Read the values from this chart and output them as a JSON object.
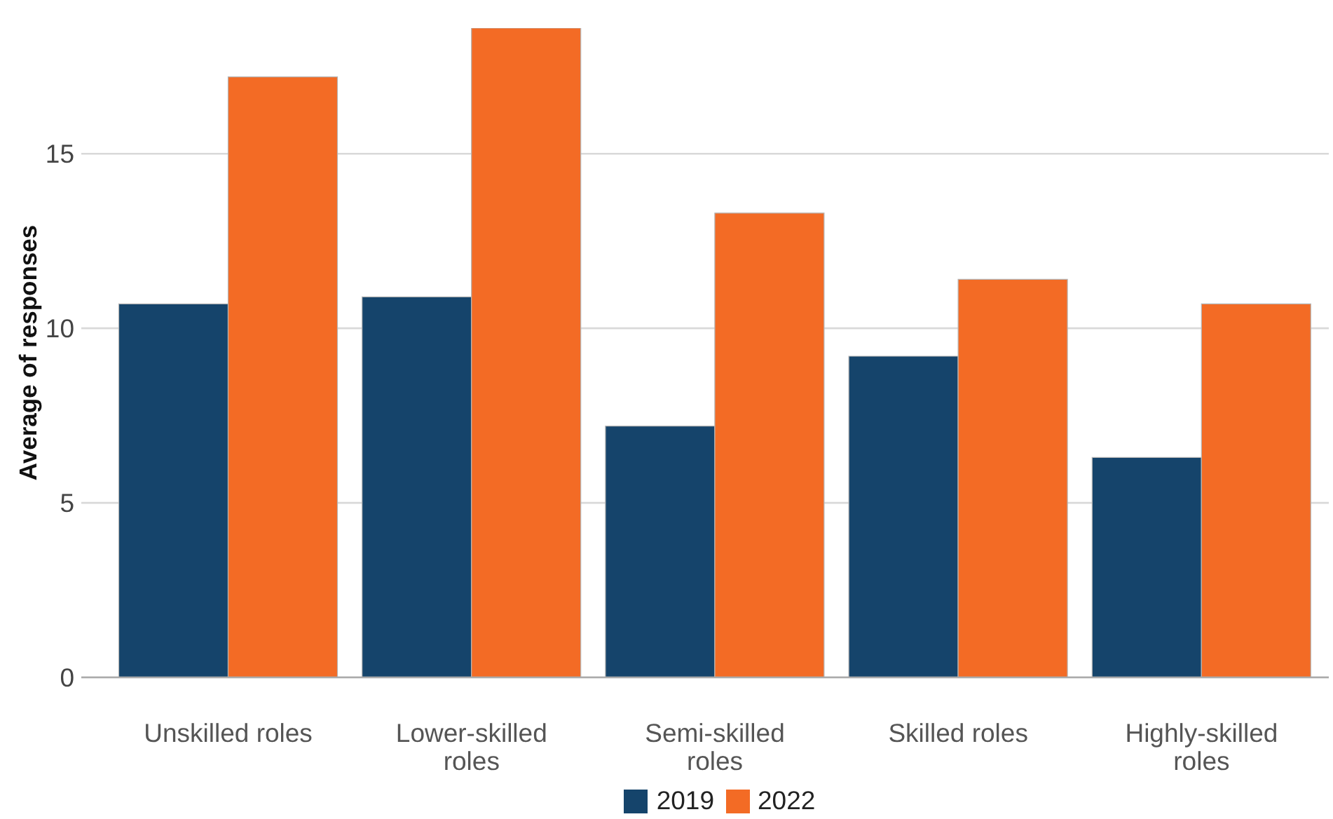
{
  "chart_data": {
    "type": "bar",
    "ylabel": "Average of responses",
    "categories": [
      "Unskilled roles",
      "Lower-skilled roles",
      "Semi-skilled roles",
      "Skilled roles",
      "Highly-skilled roles"
    ],
    "series": [
      {
        "name": "2019",
        "color": "#15446b",
        "values": [
          10.7,
          10.9,
          7.2,
          9.2,
          6.3
        ]
      },
      {
        "name": "2022",
        "color": "#f36b25",
        "values": [
          17.2,
          18.6,
          13.3,
          11.4,
          10.7
        ]
      }
    ],
    "ylim": [
      0,
      18.6
    ],
    "yticks": [
      0,
      5,
      10,
      15
    ],
    "grid": "y",
    "legend": "bottom"
  }
}
